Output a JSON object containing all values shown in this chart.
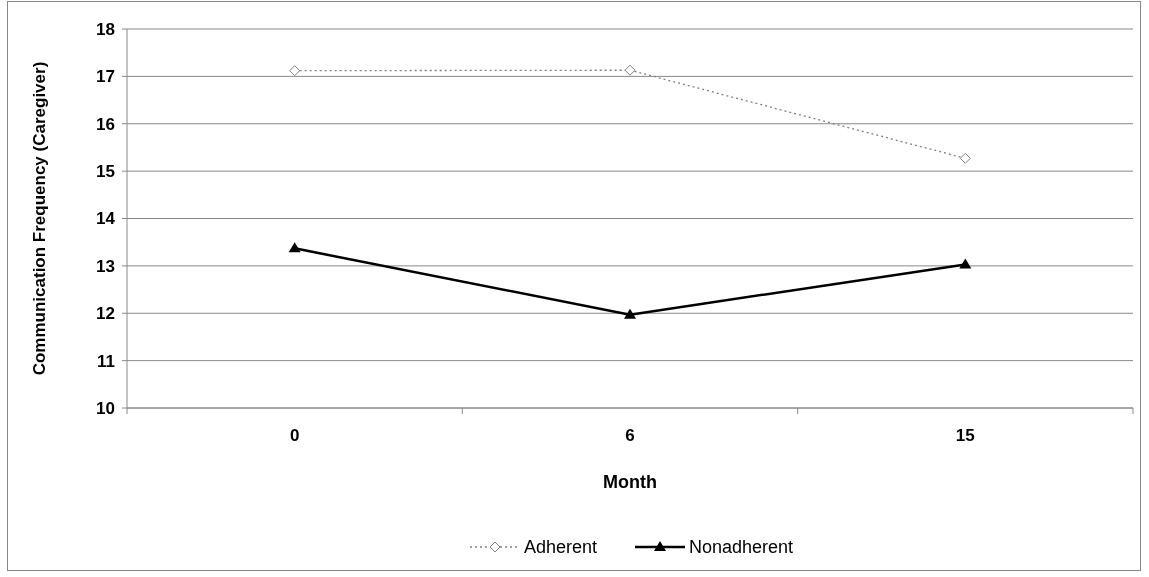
{
  "chart_data": {
    "type": "line",
    "xlabel": "Month",
    "ylabel": "Communication Frequency (Caregiver)",
    "categories": [
      "0",
      "6",
      "15"
    ],
    "series": [
      {
        "name": "Adherent",
        "color": "#808080",
        "values": [
          17.12,
          17.13,
          15.27
        ],
        "marker": "diamond",
        "line_style": "dotted"
      },
      {
        "name": "Nonadherent",
        "color": "#000000",
        "values": [
          13.37,
          11.97,
          13.03
        ],
        "marker": "triangle",
        "line_style": "solid"
      }
    ],
    "ylim": [
      10,
      18
    ],
    "yticks": [
      10,
      11,
      12,
      13,
      14,
      15,
      16,
      17,
      18
    ],
    "grid": "y",
    "legend": "bottom"
  }
}
